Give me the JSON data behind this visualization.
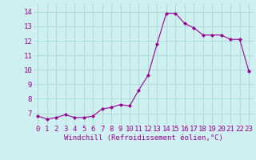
{
  "x": [
    0,
    1,
    2,
    3,
    4,
    5,
    6,
    7,
    8,
    9,
    10,
    11,
    12,
    13,
    14,
    15,
    16,
    17,
    18,
    19,
    20,
    21,
    22,
    23
  ],
  "y": [
    6.8,
    6.6,
    6.7,
    6.9,
    6.7,
    6.7,
    6.8,
    7.3,
    7.4,
    7.6,
    7.5,
    8.6,
    9.6,
    11.8,
    13.9,
    13.9,
    13.2,
    12.9,
    12.4,
    12.4,
    12.4,
    12.1,
    12.1,
    9.9
  ],
  "line_color": "#990099",
  "marker": "D",
  "markersize": 2,
  "linewidth": 0.8,
  "background_color": "#cff0f0",
  "grid_color": "#aad8d8",
  "xlabel": "Windchill (Refroidissement éolien,°C)",
  "xlabel_fontsize": 6.5,
  "yticks": [
    7,
    8,
    9,
    10,
    11,
    12,
    13,
    14
  ],
  "xticks": [
    0,
    1,
    2,
    3,
    4,
    5,
    6,
    7,
    8,
    9,
    10,
    11,
    12,
    13,
    14,
    15,
    16,
    17,
    18,
    19,
    20,
    21,
    22,
    23
  ],
  "xlim": [
    -0.5,
    23.5
  ],
  "ylim": [
    6.2,
    14.6
  ],
  "tick_fontsize": 6.5,
  "tick_color": "#990099",
  "label_color": "#990099"
}
